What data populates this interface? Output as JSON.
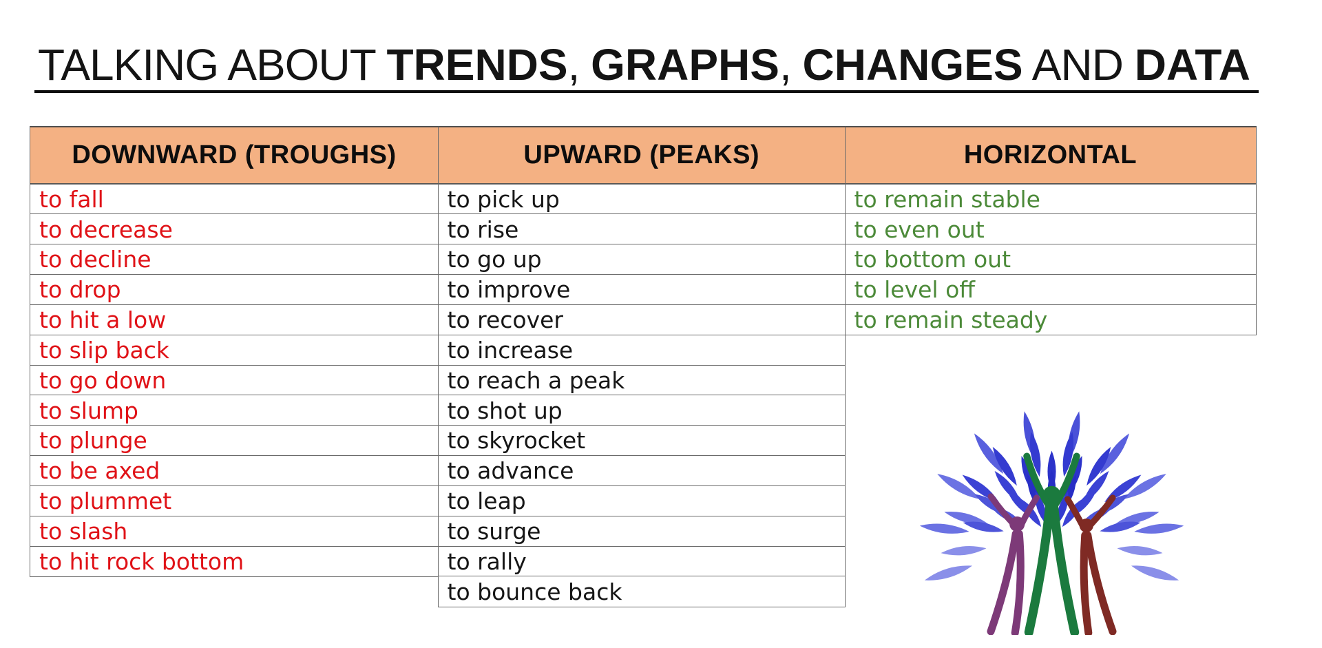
{
  "title": {
    "segments": [
      {
        "text": "TALKING ABOUT "
      },
      {
        "text": "TRENDS"
      },
      {
        "text": ", "
      },
      {
        "text": "GRAPHS"
      },
      {
        "text": ", "
      },
      {
        "text": "CHANGES"
      },
      {
        "text": " AND "
      },
      {
        "text": "DATA"
      }
    ]
  },
  "table": {
    "columns": [
      {
        "header": "DOWNWARD (TROUGHS)",
        "items": [
          "to fall",
          "to decrease",
          "to decline",
          "to drop",
          "to hit a low",
          "to slip back",
          "to go down",
          "to slump",
          "to plunge",
          "to be axed",
          "to plummet",
          "to slash",
          "to hit rock bottom"
        ]
      },
      {
        "header": "UPWARD (PEAKS)",
        "items": [
          "to pick up",
          "to rise",
          "to go up",
          "to improve",
          "to recover",
          "to increase",
          "to reach a peak",
          "to shot up",
          "to skyrocket",
          "to advance",
          "to leap",
          "to surge",
          "to rally",
          "to bounce back"
        ]
      },
      {
        "header": "HORIZONTAL",
        "items": [
          "to remain stable",
          "to even out",
          "to bottom out",
          "to level off",
          "to remain steady"
        ]
      }
    ]
  },
  "illustration": {
    "name": "people-tree",
    "leaf_blue_dark": "#2c33ca",
    "leaf_blue_light": "#8a8fe9",
    "figure_purple": "#7d3a78",
    "figure_green": "#1b7a3e",
    "figure_maroon": "#7f2a24"
  },
  "theme": {
    "header_bg": "#f4b183",
    "downward_red": "#e01217",
    "upward_black": "#161616",
    "horizontal_green": "#4c8a39",
    "border_gray": "#6a6a6a",
    "title_black": "#141414"
  }
}
